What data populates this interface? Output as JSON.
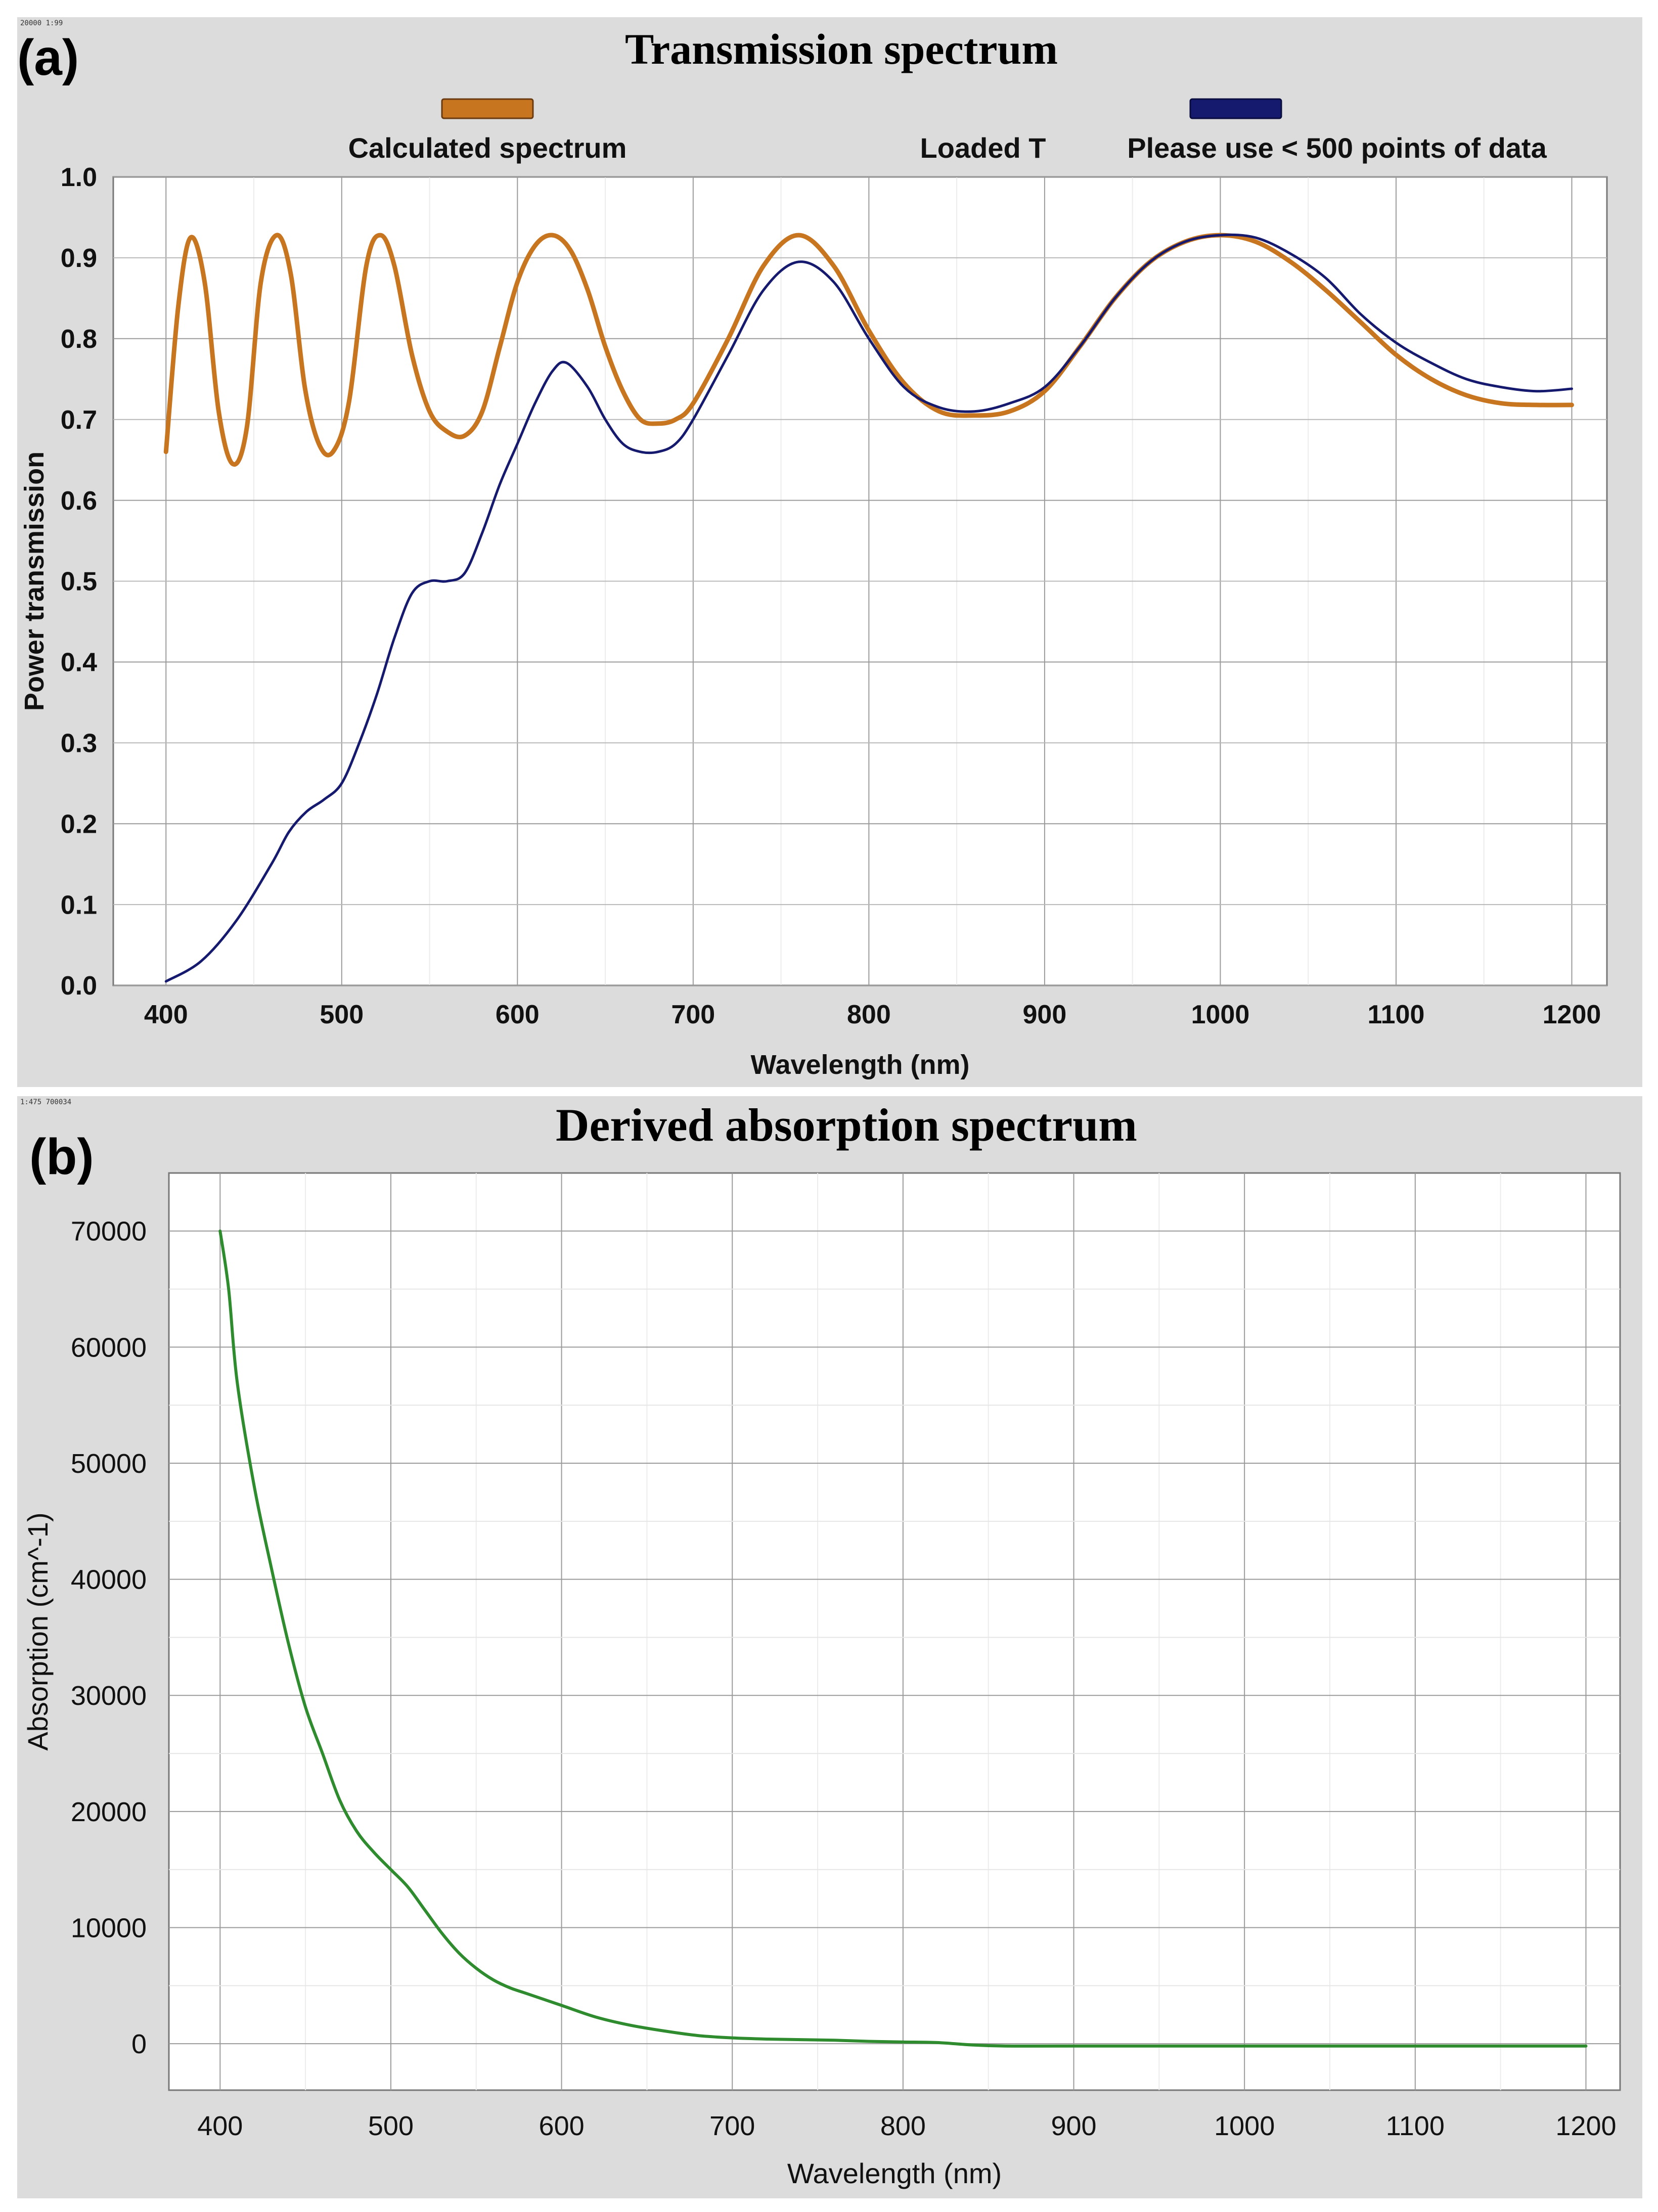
{
  "chart_data": [
    {
      "panel_label": "(a)",
      "corner_text": "20000 1:99",
      "type": "line",
      "title": "Transmission spectrum",
      "xlabel": "Wavelength (nm)",
      "ylabel": "Power transmission",
      "xlim": [
        370,
        1220
      ],
      "ylim": [
        0,
        1.0
      ],
      "xticks": [
        "400",
        "500",
        "600",
        "700",
        "800",
        "900",
        "1000",
        "1100",
        "1200"
      ],
      "yticks": [
        "0.0",
        "0.1",
        "0.2",
        "0.3",
        "0.4",
        "0.5",
        "0.6",
        "0.7",
        "0.8",
        "0.9",
        "1.0"
      ],
      "legend": [
        {
          "name": "Calculated spectrum",
          "color": "#c87520"
        },
        {
          "name": "Loaded T",
          "color": "#151a6e"
        },
        {
          "name": "Please use < 500 points of data",
          "color": "#151a6e"
        }
      ],
      "series": [
        {
          "name": "Calculated spectrum",
          "color": "#c87520",
          "x": [
            400,
            407,
            414,
            422,
            430,
            438,
            446,
            454,
            463,
            471,
            479,
            487,
            495,
            504,
            514,
            522,
            530,
            540,
            550,
            560,
            570,
            580,
            590,
            600,
            610,
            620,
            630,
            640,
            650,
            660,
            670,
            680,
            690,
            700,
            720,
            740,
            760,
            780,
            800,
            820,
            840,
            860,
            880,
            900,
            920,
            940,
            960,
            980,
            1000,
            1020,
            1040,
            1060,
            1080,
            1100,
            1120,
            1140,
            1160,
            1180,
            1200
          ],
          "y": [
            0.66,
            0.84,
            0.925,
            0.87,
            0.71,
            0.645,
            0.69,
            0.87,
            0.928,
            0.88,
            0.74,
            0.67,
            0.66,
            0.72,
            0.89,
            0.928,
            0.89,
            0.78,
            0.71,
            0.685,
            0.68,
            0.71,
            0.79,
            0.87,
            0.915,
            0.928,
            0.91,
            0.86,
            0.79,
            0.735,
            0.7,
            0.695,
            0.7,
            0.72,
            0.8,
            0.89,
            0.928,
            0.89,
            0.81,
            0.745,
            0.71,
            0.705,
            0.71,
            0.735,
            0.79,
            0.85,
            0.895,
            0.92,
            0.928,
            0.92,
            0.895,
            0.86,
            0.82,
            0.78,
            0.75,
            0.73,
            0.72,
            0.718,
            0.718
          ]
        },
        {
          "name": "Loaded T",
          "color": "#151a6e",
          "x": [
            400,
            420,
            440,
            460,
            470,
            480,
            490,
            500,
            510,
            520,
            530,
            540,
            550,
            560,
            570,
            580,
            590,
            600,
            610,
            620,
            628,
            640,
            650,
            660,
            670,
            680,
            690,
            700,
            720,
            740,
            760,
            780,
            800,
            820,
            840,
            860,
            880,
            900,
            920,
            940,
            960,
            980,
            1000,
            1020,
            1040,
            1060,
            1080,
            1100,
            1120,
            1140,
            1160,
            1180,
            1200
          ],
          "y": [
            0.005,
            0.03,
            0.08,
            0.15,
            0.19,
            0.215,
            0.23,
            0.25,
            0.3,
            0.36,
            0.43,
            0.485,
            0.5,
            0.5,
            0.51,
            0.56,
            0.62,
            0.67,
            0.72,
            0.76,
            0.77,
            0.74,
            0.7,
            0.67,
            0.66,
            0.66,
            0.67,
            0.7,
            0.78,
            0.86,
            0.895,
            0.87,
            0.8,
            0.74,
            0.715,
            0.71,
            0.72,
            0.74,
            0.79,
            0.85,
            0.895,
            0.92,
            0.928,
            0.925,
            0.905,
            0.875,
            0.83,
            0.795,
            0.77,
            0.75,
            0.74,
            0.735,
            0.738
          ]
        }
      ]
    },
    {
      "panel_label": "(b)",
      "corner_text": "1:475 700034",
      "type": "line",
      "title": "Derived absorption spectrum",
      "xlabel": "Wavelength (nm)",
      "ylabel": "Absorption (cm^-1)",
      "xlim": [
        370,
        1220
      ],
      "ylim": [
        -4000,
        75000
      ],
      "xticks": [
        "400",
        "500",
        "600",
        "700",
        "800",
        "900",
        "1000",
        "1100",
        "1200"
      ],
      "yticks": [
        "0",
        "10000",
        "20000",
        "30000",
        "40000",
        "50000",
        "60000",
        "70000"
      ],
      "series": [
        {
          "name": "Derived absorption",
          "color": "#2e8b2e",
          "x": [
            400,
            405,
            410,
            420,
            430,
            440,
            450,
            460,
            470,
            480,
            490,
            500,
            510,
            520,
            530,
            540,
            550,
            560,
            570,
            580,
            600,
            620,
            640,
            660,
            680,
            700,
            720,
            740,
            760,
            780,
            800,
            820,
            840,
            860,
            900,
            1000,
            1100,
            1200
          ],
          "y": [
            70000,
            65000,
            57000,
            48000,
            41000,
            34500,
            29000,
            25000,
            21000,
            18300,
            16500,
            15000,
            13500,
            11500,
            9500,
            7800,
            6500,
            5500,
            4800,
            4300,
            3300,
            2300,
            1600,
            1100,
            700,
            500,
            400,
            350,
            300,
            200,
            150,
            100,
            -100,
            -200,
            -200,
            -200,
            -200,
            -200
          ]
        }
      ]
    }
  ]
}
